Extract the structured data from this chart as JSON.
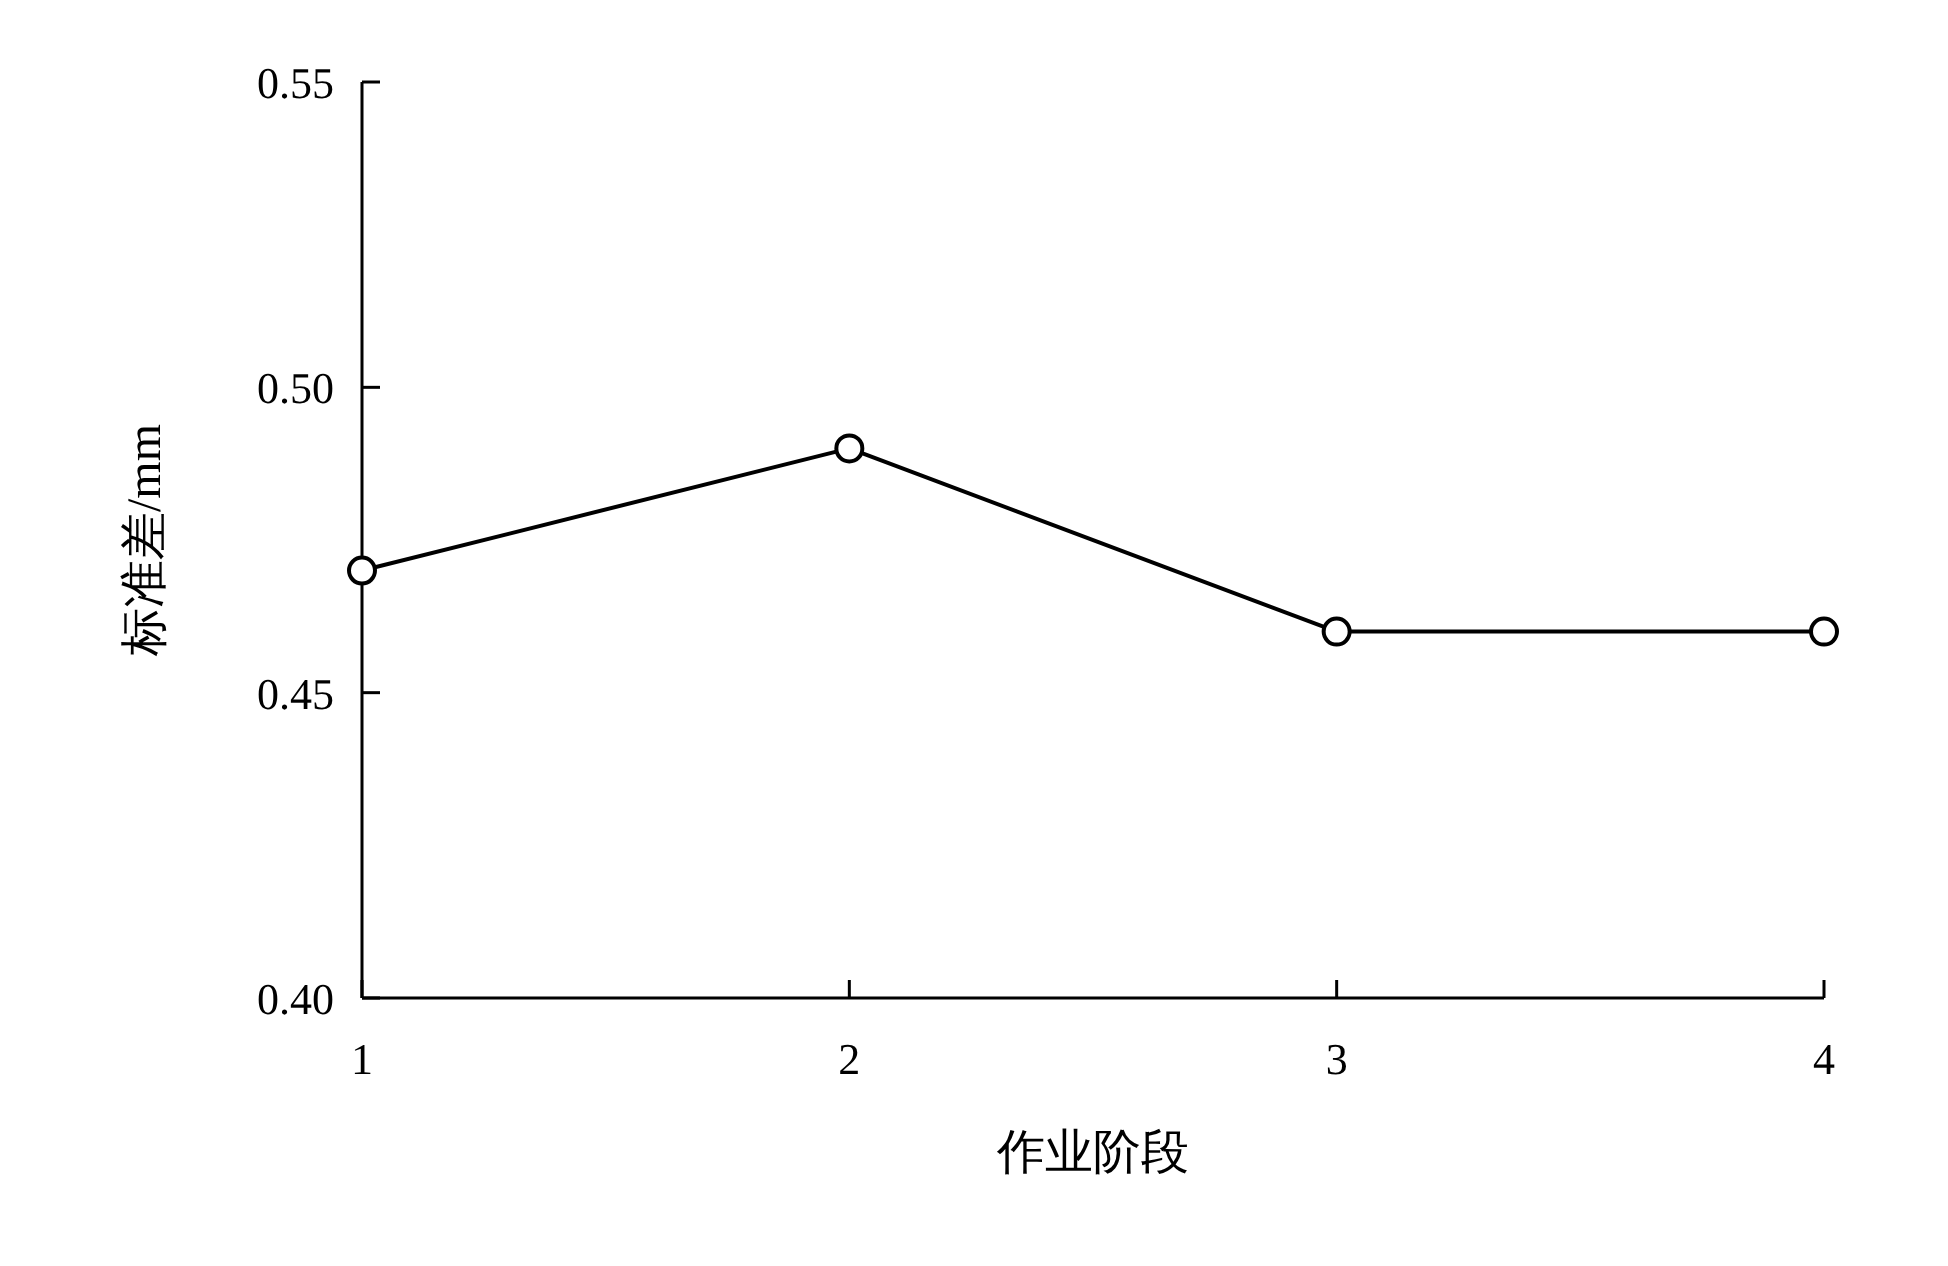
{
  "chart_data": {
    "type": "line",
    "xlabel": "作业阶段",
    "ylabel": "标准差/mm",
    "x": [
      1,
      2,
      3,
      4
    ],
    "values": [
      0.47,
      0.49,
      0.46,
      0.46
    ],
    "color": "#000000",
    "marker": "circle",
    "xlim": [
      1,
      4
    ],
    "xticks": [
      1,
      2,
      3,
      4
    ],
    "ylim": [
      0.4,
      0.55
    ],
    "yticks": [
      {
        "value": 0.4,
        "label": "0.40"
      },
      {
        "value": 0.45,
        "label": "0.45"
      },
      {
        "value": 0.5,
        "label": "0.50"
      },
      {
        "value": 0.55,
        "label": "0.55"
      }
    ]
  }
}
